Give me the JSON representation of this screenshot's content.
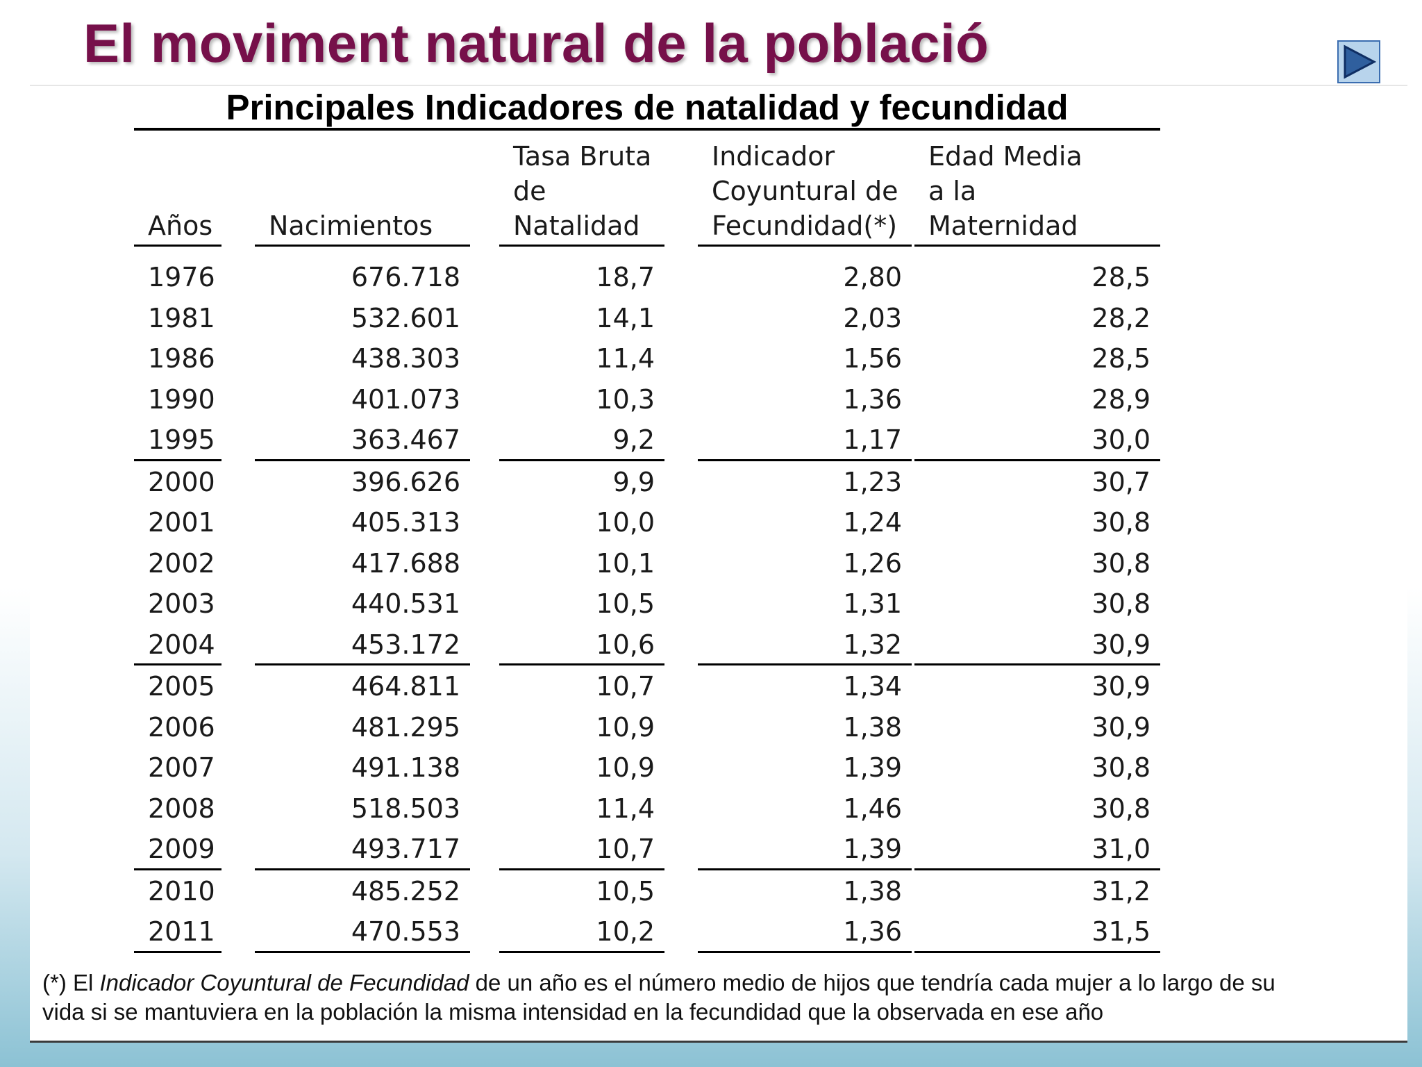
{
  "slide": {
    "title": "El moviment natural de la població",
    "next_icon": "play-next-icon"
  },
  "table": {
    "title": "Principales Indicadores de natalidad y fecundidad",
    "headers": [
      {
        "lines": [
          "Años"
        ]
      },
      {
        "lines": [
          "Nacimientos"
        ]
      },
      {
        "lines": [
          "Tasa Bruta",
          "de",
          "Natalidad"
        ]
      },
      {
        "lines": [
          "Indicador",
          "Coyuntural de",
          "Fecundidad(*)"
        ]
      },
      {
        "lines": [
          "Edad Media",
          "a la",
          "Maternidad"
        ]
      }
    ],
    "groups": [
      [
        [
          "1976",
          "676.718",
          "18,7",
          "2,80",
          "28,5"
        ],
        [
          "1981",
          "532.601",
          "14,1",
          "2,03",
          "28,2"
        ],
        [
          "1986",
          "438.303",
          "11,4",
          "1,56",
          "28,5"
        ],
        [
          "1990",
          "401.073",
          "10,3",
          "1,36",
          "28,9"
        ],
        [
          "1995",
          "363.467",
          "9,2",
          "1,17",
          "30,0"
        ]
      ],
      [
        [
          "2000",
          "396.626",
          "9,9",
          "1,23",
          "30,7"
        ],
        [
          "2001",
          "405.313",
          "10,0",
          "1,24",
          "30,8"
        ],
        [
          "2002",
          "417.688",
          "10,1",
          "1,26",
          "30,8"
        ],
        [
          "2003",
          "440.531",
          "10,5",
          "1,31",
          "30,8"
        ],
        [
          "2004",
          "453.172",
          "10,6",
          "1,32",
          "30,9"
        ]
      ],
      [
        [
          "2005",
          "464.811",
          "10,7",
          "1,34",
          "30,9"
        ],
        [
          "2006",
          "481.295",
          "10,9",
          "1,38",
          "30,9"
        ],
        [
          "2007",
          "491.138",
          "10,9",
          "1,39",
          "30,8"
        ],
        [
          "2008",
          "518.503",
          "11,4",
          "1,46",
          "30,8"
        ],
        [
          "2009",
          "493.717",
          "10,7",
          "1,39",
          "31,0"
        ]
      ],
      [
        [
          "2010",
          "485.252",
          "10,5",
          "1,38",
          "31,2"
        ],
        [
          "2011",
          "470.553",
          "10,2",
          "1,36",
          "31,5"
        ]
      ]
    ]
  },
  "footnote": {
    "prefix": "(*) El ",
    "term": "Indicador Coyuntural de Fecundidad",
    "rest_line1": " de un año es el número medio de hijos que tendría cada mujer a lo largo de su",
    "line2": "vida si se mantuviera en la población la misma intensidad en la fecundidad que la observada en ese año"
  }
}
